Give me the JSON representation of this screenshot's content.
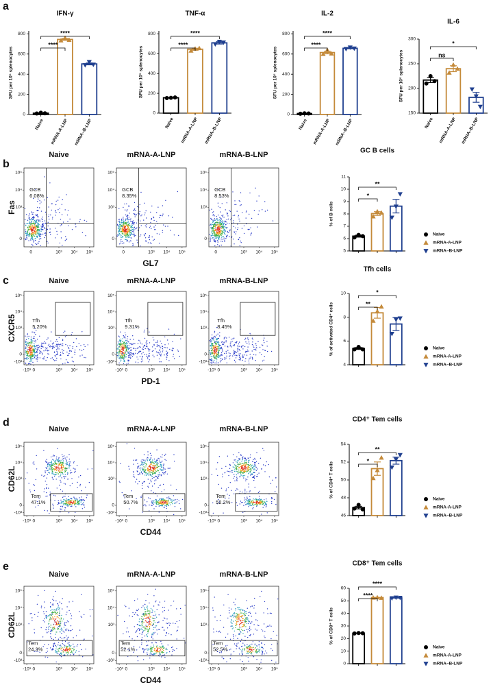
{
  "panels": [
    {
      "letter": "a"
    },
    {
      "letter": "b",
      "flow": {
        "columns": [
          "Naive",
          "mRNA-A-LNP",
          "mRNA-B-LNP"
        ],
        "x_label": "GL7",
        "y_label": "Fas",
        "xtick_labels": [
          "0",
          "10³",
          "10⁴",
          "10⁵"
        ],
        "ytick_labels": [
          "0",
          "10³",
          "10⁴",
          "10⁵"
        ],
        "gate_name": "GCB",
        "gate_values": [
          "6.08%",
          "8.35%",
          "8.53%"
        ]
      }
    },
    {
      "letter": "c",
      "flow": {
        "columns": [
          "Naive",
          "mRNA-A-LNP",
          "mRNA-B-LNP"
        ],
        "x_label": "PD-1",
        "y_label": "CXCR5",
        "xtick_labels": [
          "-10³",
          "0",
          "10³",
          "10⁴",
          "10⁵"
        ],
        "ytick_labels": [
          "-10³",
          "0",
          "10³",
          "10⁴",
          "10⁵"
        ],
        "gate_name": "Tfh",
        "gate_values": [
          "5.20%",
          "9.31%",
          "8.45%"
        ]
      }
    },
    {
      "letter": "d",
      "flow": {
        "columns": [
          "Naive",
          "mRNA-A-LNP",
          "mRNA-B-LNP"
        ],
        "x_label": "CD44",
        "y_label": "CD62L",
        "xtick_labels": [
          "-10³",
          "0",
          "10³",
          "10⁴",
          "10⁵"
        ],
        "ytick_labels": [
          "-10³",
          "0",
          "10³",
          "10⁴",
          "10⁵"
        ],
        "gate_name": "Tem",
        "gate_values": [
          "47.1%",
          "50.7%",
          "52.2%"
        ]
      }
    },
    {
      "letter": "e",
      "flow": {
        "columns": [
          "Naive",
          "mRNA-A-LNP",
          "mRNA-B-LNP"
        ],
        "x_label": "CD44",
        "y_label": "CD62L",
        "xtick_labels": [
          "-10³",
          "0",
          "10³",
          "10⁴",
          "10⁵"
        ],
        "ytick_labels": [
          "-10³",
          "0",
          "10³",
          "10⁴",
          "10⁵"
        ],
        "gate_name": "Tem",
        "gate_values": [
          "24.3%",
          "52.1%",
          "52.5%"
        ]
      }
    }
  ],
  "chart_data": [
    {
      "type": "bar",
      "title": "IFN-γ",
      "y_label": "SFU per 10⁵ splenocytes",
      "legend": false,
      "categories": [
        "Naive",
        "mRNA-A-LNP",
        "mRNA–B-LNP"
      ],
      "colors": [
        "#000000",
        "#c48a3a",
        "#1f3f8f"
      ],
      "values": [
        13,
        745,
        502
      ],
      "errors": [
        3,
        9,
        9
      ],
      "points": [
        [
          10,
          18,
          12
        ],
        [
          735,
          760,
          740
        ],
        [
          490,
          520,
          495
        ]
      ],
      "ylim": [
        0,
        830
      ],
      "yticks": [
        0,
        200,
        400,
        600,
        800
      ],
      "significance": [
        {
          "pair": [
            0,
            1
          ],
          "label": "****"
        },
        {
          "pair": [
            0,
            2
          ],
          "label": "****"
        }
      ]
    },
    {
      "type": "bar",
      "title": "TNF-α",
      "y_label": "SFU per 10⁵ splenocytes",
      "legend": false,
      "categories": [
        "Naive",
        "mRNA-A-LNP",
        "mRNA–B-LNP"
      ],
      "colors": [
        "#000000",
        "#c48a3a",
        "#1f3f8f"
      ],
      "values": [
        155,
        645,
        709
      ],
      "errors": [
        2,
        10,
        12
      ],
      "points": [
        [
          152,
          155,
          158
        ],
        [
          630,
          650,
          655
        ],
        [
          695,
          720,
          712
        ]
      ],
      "ylim": [
        0,
        830
      ],
      "yticks": [
        0,
        200,
        400,
        600,
        800
      ],
      "significance": [
        {
          "pair": [
            0,
            1
          ],
          "label": "****"
        },
        {
          "pair": [
            0,
            2
          ],
          "label": "****"
        }
      ]
    },
    {
      "type": "bar",
      "title": "IL-2",
      "y_label": "SFU per 10⁵ splenocytes",
      "legend": false,
      "categories": [
        "Naive",
        "mRNA-A-LNP",
        "mRNA–B-LNP"
      ],
      "colors": [
        "#000000",
        "#c48a3a",
        "#1f3f8f"
      ],
      "values": [
        10,
        615,
        657
      ],
      "errors": [
        2,
        13,
        5
      ],
      "points": [
        [
          8,
          12,
          10
        ],
        [
          600,
          640,
          605
        ],
        [
          650,
          665,
          655
        ]
      ],
      "ylim": [
        0,
        830
      ],
      "yticks": [
        0,
        200,
        400,
        600,
        800
      ],
      "significance": [
        {
          "pair": [
            0,
            1
          ],
          "label": "****"
        },
        {
          "pair": [
            0,
            2
          ],
          "label": "****"
        }
      ]
    },
    {
      "type": "bar",
      "title": "IL-6",
      "y_label": "SFU per 10⁵ splenocytes",
      "legend": false,
      "categories": [
        "Naive",
        "mRNA-A-LNP",
        "mRNA–B-LNP"
      ],
      "colors": [
        "#000000",
        "#c48a3a",
        "#1f3f8f"
      ],
      "values": [
        217,
        240,
        182
      ],
      "errors": [
        5,
        6,
        10
      ],
      "points": [
        [
          210,
          225,
          215
        ],
        [
          232,
          248,
          240
        ],
        [
          198,
          184,
          163
        ]
      ],
      "ylim": [
        150,
        300
      ],
      "yticks": [
        150,
        200,
        250,
        300
      ],
      "significance": [
        {
          "pair": [
            0,
            1
          ],
          "label": "ns"
        },
        {
          "pair": [
            0,
            2
          ],
          "label": "*"
        }
      ]
    },
    {
      "type": "bar",
      "title": "GC B cells",
      "y_label": "% of B cells",
      "legend": true,
      "categories": [
        "Naive",
        "mRNA-A-LNP",
        "mRNA–B-LNP"
      ],
      "colors": [
        "#000000",
        "#c48a3a",
        "#1f3f8f"
      ],
      "values": [
        6.2,
        8.03,
        8.63
      ],
      "errors": [
        0.08,
        0.15,
        0.55
      ],
      "points": [
        [
          6.1,
          6.3,
          6.2
        ],
        [
          7.8,
          8.2,
          8.1
        ],
        [
          7.7,
          8.6,
          9.6
        ]
      ],
      "ylim": [
        5,
        11
      ],
      "yticks": [
        5,
        6,
        7,
        8,
        9,
        10,
        11
      ],
      "significance": [
        {
          "pair": [
            0,
            1
          ],
          "label": "*"
        },
        {
          "pair": [
            0,
            2
          ],
          "label": "**"
        }
      ]
    },
    {
      "type": "bar",
      "title": "Tfh cells",
      "y_label": "% of activated CD4⁺ cells",
      "legend": true,
      "categories": [
        "Naive",
        "mRNA-A-LNP",
        "mRNA–B-LNP"
      ],
      "colors": [
        "#000000",
        "#c48a3a",
        "#1f3f8f"
      ],
      "values": [
        5.37,
        8.37,
        7.43
      ],
      "errors": [
        0.08,
        0.45,
        0.55
      ],
      "points": [
        [
          5.3,
          5.5,
          5.3
        ],
        [
          7.7,
          8.5,
          8.9
        ],
        [
          6.6,
          7.8,
          7.9
        ]
      ],
      "ylim": [
        4,
        10
      ],
      "yticks": [
        4,
        6,
        8,
        10
      ],
      "significance": [
        {
          "pair": [
            0,
            1
          ],
          "label": "**"
        },
        {
          "pair": [
            0,
            2
          ],
          "label": "*"
        }
      ]
    },
    {
      "type": "bar",
      "title": "CD4⁺ Tem cells",
      "y_label": "% of CD4⁺ T cells",
      "legend": true,
      "categories": [
        "Naive",
        "mRNA-A-LNP",
        "mRNA–B-LNP"
      ],
      "colors": [
        "#000000",
        "#c48a3a",
        "#1f3f8f"
      ],
      "values": [
        46.9,
        51.27,
        52.17
      ],
      "errors": [
        0.15,
        0.75,
        0.4
      ],
      "points": [
        [
          46.8,
          47.2,
          46.7
        ],
        [
          50.2,
          51.1,
          52.5
        ],
        [
          51.4,
          52.3,
          52.8
        ]
      ],
      "ylim": [
        46,
        54
      ],
      "yticks": [
        46,
        48,
        50,
        52,
        54
      ],
      "significance": [
        {
          "pair": [
            0,
            1
          ],
          "label": "*"
        },
        {
          "pair": [
            0,
            2
          ],
          "label": "**"
        }
      ]
    },
    {
      "type": "bar",
      "title": "CD8⁺ Tem cells",
      "y_label": "% of CD8⁺ T cells",
      "legend": true,
      "categories": [
        "Naive",
        "mRNA-A-LNP",
        "mRNA–B-LNP"
      ],
      "colors": [
        "#000000",
        "#c48a3a",
        "#1f3f8f"
      ],
      "values": [
        24.27,
        52.6,
        52.37
      ],
      "errors": [
        0.1,
        0.12,
        0.15
      ],
      "points": [
        [
          24.1,
          24.4,
          24.3
        ],
        [
          52.6,
          52.8,
          52.4
        ],
        [
          52.1,
          52.6,
          52.4
        ]
      ],
      "ylim": [
        0,
        60
      ],
      "yticks": [
        0,
        10,
        20,
        30,
        40,
        50,
        60
      ],
      "significance": [
        {
          "pair": [
            0,
            1
          ],
          "label": "****"
        },
        {
          "pair": [
            0,
            2
          ],
          "label": "****"
        }
      ]
    }
  ]
}
